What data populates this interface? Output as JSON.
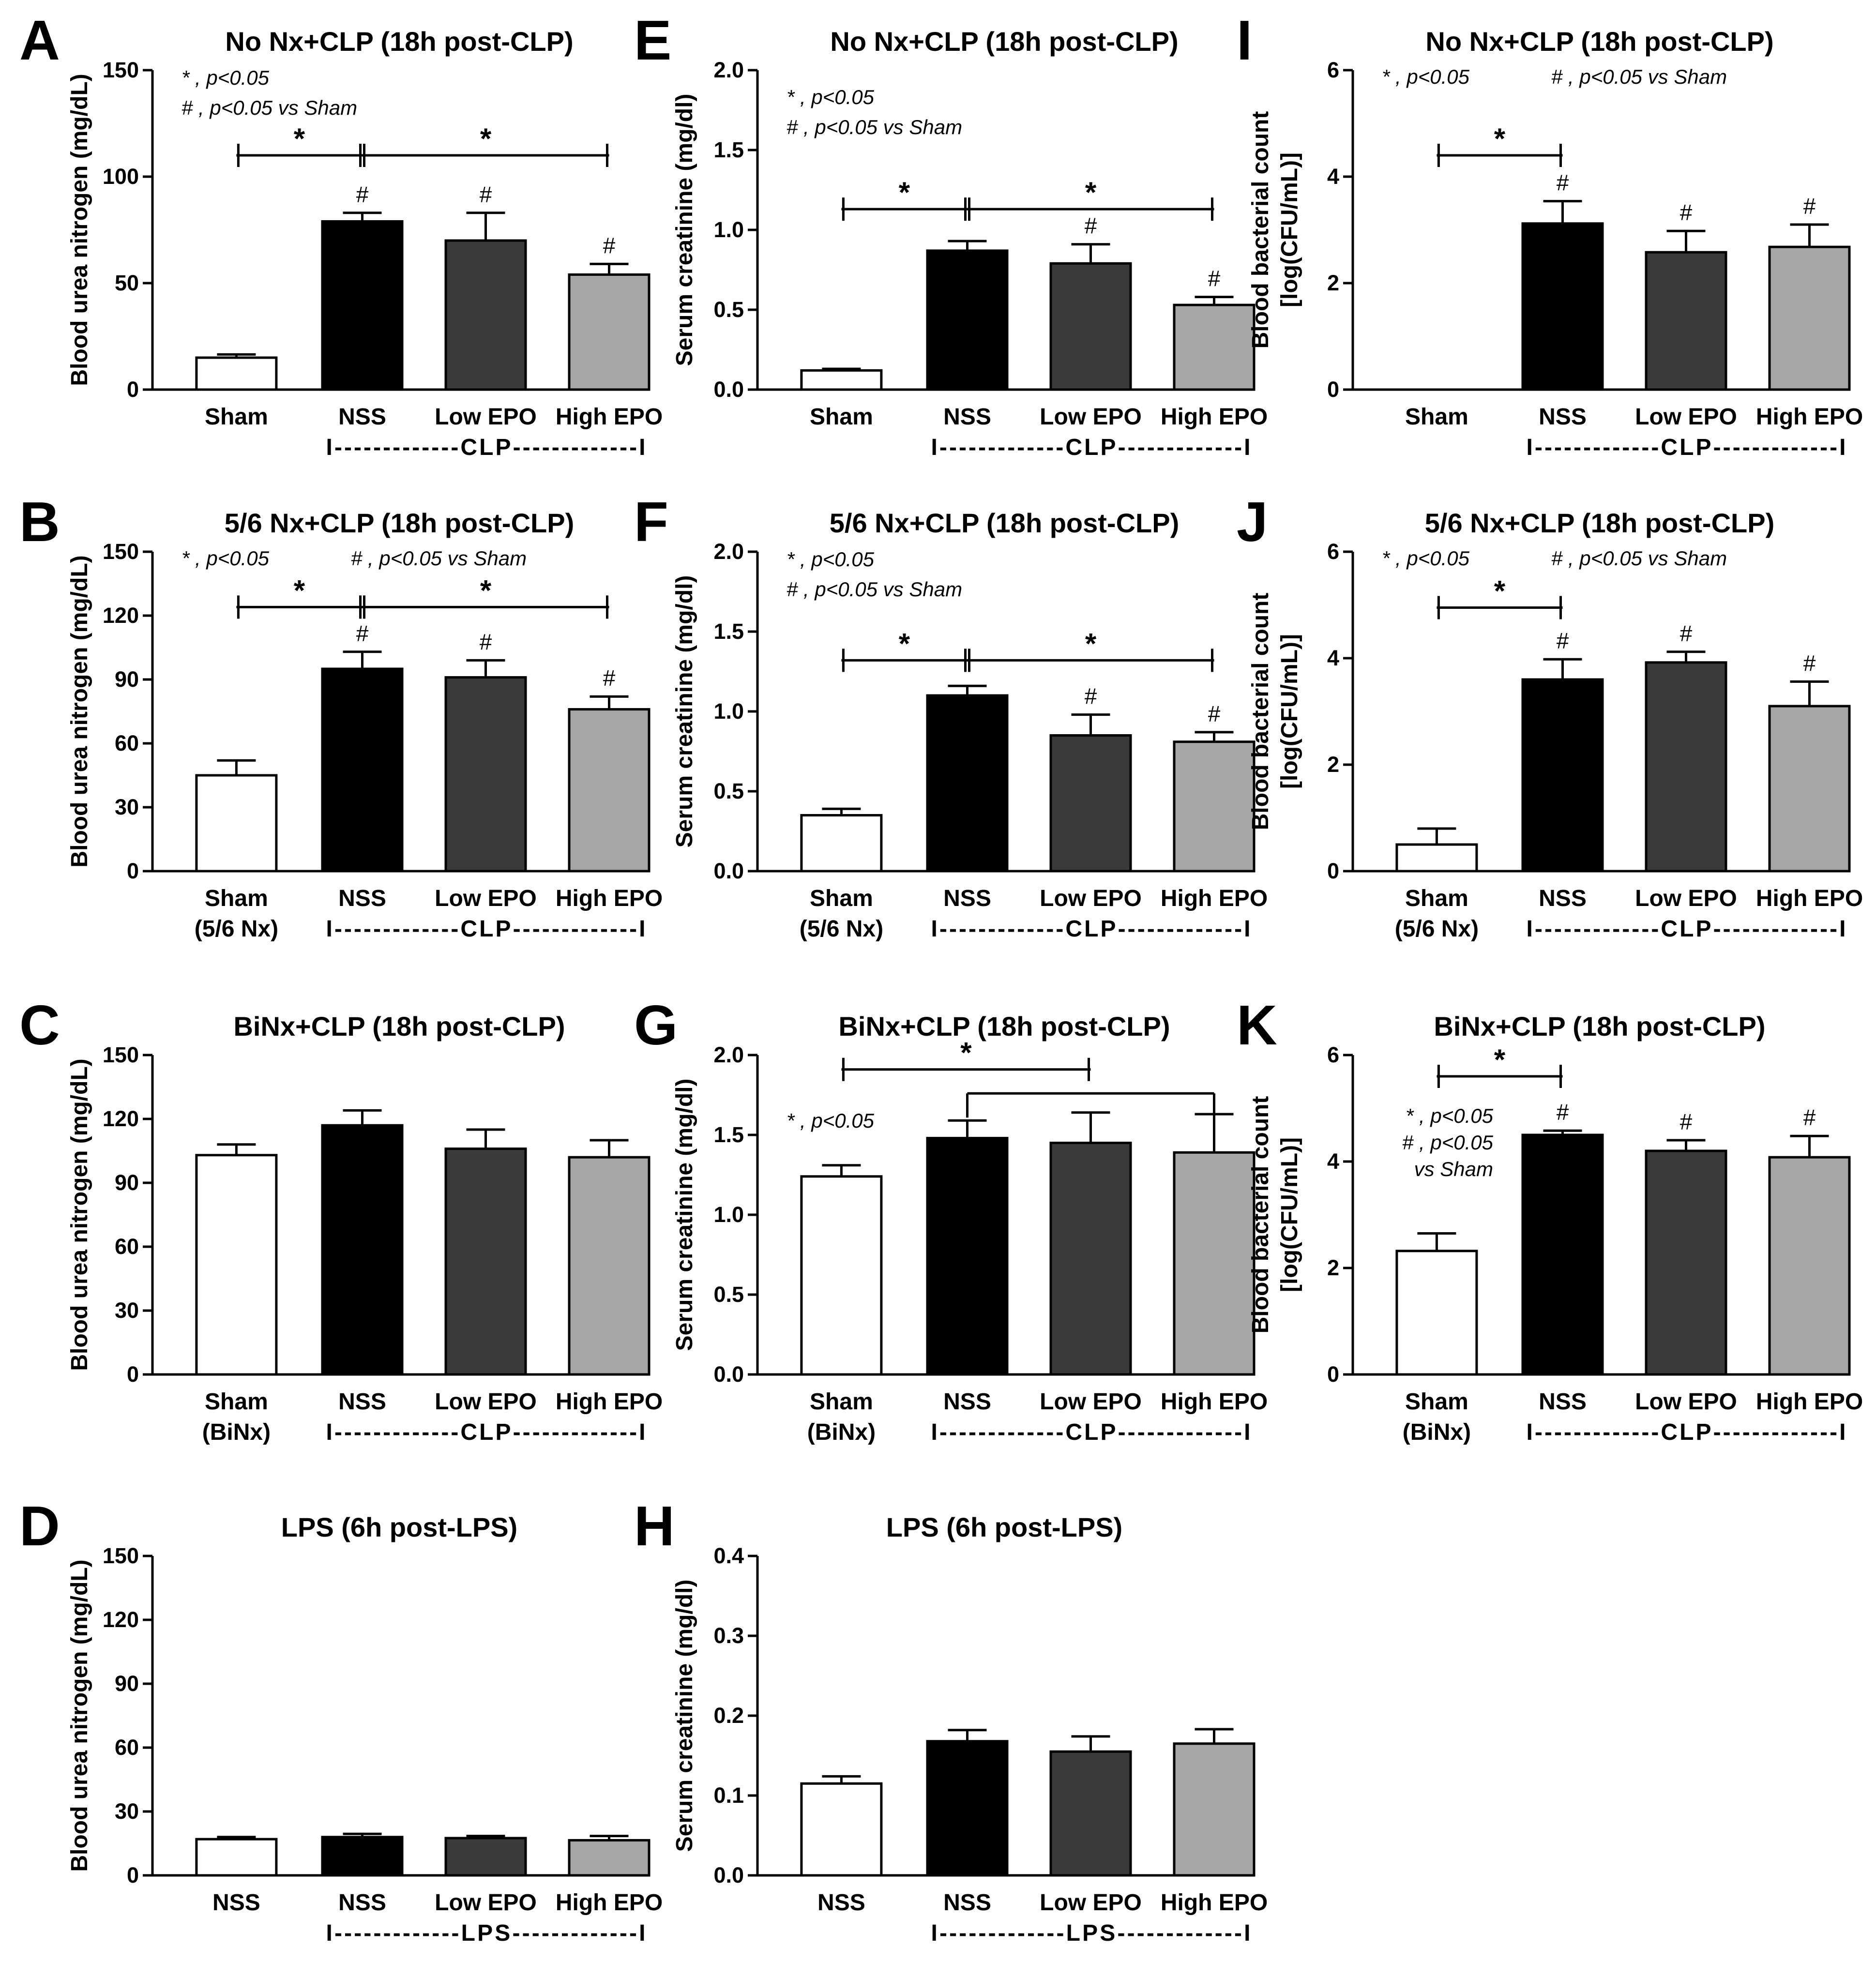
{
  "chart_data": [
    {
      "panel": "A",
      "type": "bar",
      "title": "No Nx+CLP (18h post-CLP)",
      "ylabel": "Blood urea nitrogen (mg/dL)",
      "ylim": [
        0,
        150
      ],
      "yticks": [
        "0",
        "50",
        "100",
        "150"
      ],
      "categories": [
        "Sham",
        "NSS",
        "Low EPO",
        "High EPO"
      ],
      "categories_line2": [
        "",
        "",
        "",
        ""
      ],
      "group_label": "I-------------CLP-------------I",
      "group_span": [
        1,
        3
      ],
      "values": [
        15,
        79,
        70,
        54
      ],
      "errors": [
        1.5,
        4,
        13,
        5
      ],
      "colors": [
        "#ffffff",
        "#000000",
        "#3a3a3a",
        "#a6a6a6"
      ],
      "hash": [
        false,
        true,
        true,
        true
      ],
      "hash_text": "#",
      "brackets": [
        {
          "from": 0,
          "to": 1,
          "y": 110,
          "label": "*"
        },
        {
          "from": 1,
          "to": 3,
          "y": 110,
          "label": "*"
        }
      ],
      "legend": [
        "* , p<0.05",
        "# , p<0.05 vs Sham"
      ],
      "legend_layout": "stack"
    },
    {
      "panel": "B",
      "type": "bar",
      "title": "5/6 Nx+CLP (18h post-CLP)",
      "ylabel": "Blood urea nitrogen (mg/dL)",
      "ylim": [
        0,
        150
      ],
      "yticks": [
        "0",
        "30",
        "60",
        "90",
        "120",
        "150"
      ],
      "categories": [
        "Sham",
        "NSS",
        "Low EPO",
        "High EPO"
      ],
      "categories_line2": [
        "(5/6 Nx)",
        "",
        "",
        ""
      ],
      "group_label": "I-------------CLP-------------I",
      "group_span": [
        1,
        3
      ],
      "values": [
        45,
        95,
        91,
        76
      ],
      "errors": [
        7,
        8,
        8,
        6
      ],
      "colors": [
        "#ffffff",
        "#000000",
        "#3a3a3a",
        "#a6a6a6"
      ],
      "hash": [
        false,
        true,
        true,
        true
      ],
      "hash_text": "#",
      "brackets": [
        {
          "from": 0,
          "to": 1,
          "y": 124,
          "label": "*"
        },
        {
          "from": 1,
          "to": 3,
          "y": 124,
          "label": "*"
        }
      ],
      "legend": [
        "* , p<0.05",
        "# , p<0.05 vs Sham"
      ],
      "legend_layout": "row"
    },
    {
      "panel": "C",
      "type": "bar",
      "title": "BiNx+CLP (18h post-CLP)",
      "ylabel": "Blood urea nitrogen (mg/dL)",
      "ylim": [
        0,
        150
      ],
      "yticks": [
        "0",
        "30",
        "60",
        "90",
        "120",
        "150"
      ],
      "categories": [
        "Sham",
        "NSS",
        "Low EPO",
        "High EPO"
      ],
      "categories_line2": [
        "(BiNx)",
        "",
        "",
        ""
      ],
      "group_label": "I-------------CLP-------------I",
      "group_span": [
        1,
        3
      ],
      "values": [
        103,
        117,
        106,
        102
      ],
      "errors": [
        5,
        7,
        9,
        8
      ],
      "colors": [
        "#ffffff",
        "#000000",
        "#3a3a3a",
        "#a6a6a6"
      ],
      "hash": [
        false,
        false,
        false,
        false
      ],
      "hash_text": "#",
      "brackets": [],
      "legend": [],
      "legend_layout": "stack"
    },
    {
      "panel": "D",
      "type": "bar",
      "title": "LPS (6h post-LPS)",
      "ylabel": "Blood urea nitrogen (mg/dL)",
      "ylim": [
        0,
        150
      ],
      "yticks": [
        "0",
        "30",
        "60",
        "90",
        "120",
        "150"
      ],
      "categories": [
        "NSS",
        "NSS",
        "Low EPO",
        "High EPO"
      ],
      "categories_line2": [
        "",
        "",
        "",
        ""
      ],
      "group_label": "I-------------LPS-------------I",
      "group_span": [
        1,
        3
      ],
      "values": [
        17,
        18,
        17.5,
        16.5
      ],
      "errors": [
        1,
        1.5,
        1,
        2
      ],
      "colors": [
        "#ffffff",
        "#000000",
        "#3a3a3a",
        "#a6a6a6"
      ],
      "hash": [
        false,
        false,
        false,
        false
      ],
      "hash_text": "#",
      "brackets": [],
      "legend": [],
      "legend_layout": "stack"
    },
    {
      "panel": "E",
      "type": "bar",
      "title": "No Nx+CLP (18h post-CLP)",
      "ylabel": "Serum creatinine (mg/dl)",
      "ylim": [
        0,
        2.0
      ],
      "yticks": [
        "0.0",
        "0.5",
        "1.0",
        "1.5",
        "2.0"
      ],
      "categories": [
        "Sham",
        "NSS",
        "Low EPO",
        "High EPO"
      ],
      "categories_line2": [
        "",
        "",
        "",
        ""
      ],
      "group_label": "I-------------CLP-------------I",
      "group_span": [
        1,
        3
      ],
      "values": [
        0.12,
        0.87,
        0.79,
        0.53
      ],
      "errors": [
        0.01,
        0.06,
        0.12,
        0.05
      ],
      "colors": [
        "#ffffff",
        "#000000",
        "#3a3a3a",
        "#a6a6a6"
      ],
      "hash": [
        false,
        false,
        true,
        true
      ],
      "hash_text": "#",
      "brackets": [
        {
          "from": 0,
          "to": 1,
          "y": 1.13,
          "label": "*"
        },
        {
          "from": 1,
          "to": 3,
          "y": 1.13,
          "label": "*"
        }
      ],
      "legend": [
        "* , p<0.05",
        "# , p<0.05 vs Sham"
      ],
      "legend_layout": "stack"
    },
    {
      "panel": "F",
      "type": "bar",
      "title": "5/6 Nx+CLP (18h post-CLP)",
      "ylabel": "Serum creatinine (mg/dl)",
      "ylim": [
        0,
        2.0
      ],
      "yticks": [
        "0.0",
        "0.5",
        "1.0",
        "1.5",
        "2.0"
      ],
      "categories": [
        "Sham",
        "NSS",
        "Low EPO",
        "High EPO"
      ],
      "categories_line2": [
        "(5/6 Nx)",
        "",
        "",
        ""
      ],
      "group_label": "I-------------CLP-------------I",
      "group_span": [
        1,
        3
      ],
      "values": [
        0.35,
        1.1,
        0.85,
        0.81
      ],
      "errors": [
        0.04,
        0.06,
        0.13,
        0.06
      ],
      "colors": [
        "#ffffff",
        "#000000",
        "#3a3a3a",
        "#a6a6a6"
      ],
      "hash": [
        false,
        false,
        true,
        true
      ],
      "hash_text": "#",
      "brackets": [
        {
          "from": 0,
          "to": 1,
          "y": 1.32,
          "label": "*"
        },
        {
          "from": 1,
          "to": 3,
          "y": 1.32,
          "label": "*"
        }
      ],
      "legend": [
        "* , p<0.05",
        "# , p<0.05 vs Sham"
      ],
      "legend_layout": "stack"
    },
    {
      "panel": "G",
      "type": "bar",
      "title": "BiNx+CLP (18h post-CLP)",
      "ylabel": "Serum creatinine (mg/dl)",
      "ylim": [
        0,
        2.0
      ],
      "yticks": [
        "0.0",
        "0.5",
        "1.0",
        "1.5",
        "2.0"
      ],
      "categories": [
        "Sham",
        "NSS",
        "Low EPO",
        "High EPO"
      ],
      "categories_line2": [
        "(BiNx)",
        "",
        "",
        ""
      ],
      "group_label": "I-------------CLP-------------I",
      "group_span": [
        1,
        3
      ],
      "values": [
        1.24,
        1.48,
        1.45,
        1.39
      ],
      "errors": [
        0.07,
        0.11,
        0.19,
        0.24
      ],
      "colors": [
        "#ffffff",
        "#000000",
        "#3a3a3a",
        "#a6a6a6"
      ],
      "hash": [
        false,
        false,
        false,
        false
      ],
      "hash_text": "#",
      "brackets": [
        {
          "from": 0,
          "to": 2,
          "y": 1.91,
          "label": "*",
          "style": "flat"
        },
        {
          "from": 1,
          "to": 3,
          "y": 1.76,
          "label": "",
          "style": "cap_down"
        }
      ],
      "legend": [
        "* , p<0.05"
      ],
      "legend_layout": "stack"
    },
    {
      "panel": "H",
      "type": "bar",
      "title": "LPS (6h post-LPS)",
      "ylabel": "Serum creatinine (mg/dl)",
      "ylim": [
        0,
        0.4
      ],
      "yticks": [
        "0.0",
        "0.1",
        "0.2",
        "0.3",
        "0.4"
      ],
      "categories": [
        "NSS",
        "NSS",
        "Low EPO",
        "High EPO"
      ],
      "categories_line2": [
        "",
        "",
        "",
        ""
      ],
      "group_label": "I-------------LPS-------------I",
      "group_span": [
        1,
        3
      ],
      "values": [
        0.115,
        0.168,
        0.155,
        0.165
      ],
      "errors": [
        0.009,
        0.014,
        0.019,
        0.018
      ],
      "colors": [
        "#ffffff",
        "#000000",
        "#3a3a3a",
        "#a6a6a6"
      ],
      "hash": [
        false,
        false,
        false,
        false
      ],
      "hash_text": "#",
      "brackets": [],
      "legend": [],
      "legend_layout": "stack"
    },
    {
      "panel": "I",
      "type": "bar",
      "title": "No Nx+CLP (18h post-CLP)",
      "ylabel": "Blood bacterial count",
      "ylabel2": "[log(CFU/mL)]",
      "ylim": [
        0,
        6
      ],
      "yticks": [
        "0",
        "2",
        "4",
        "6"
      ],
      "categories": [
        "Sham",
        "NSS",
        "Low EPO",
        "High EPO"
      ],
      "categories_line2": [
        "",
        "",
        "",
        ""
      ],
      "group_label": "I-------------CLP-------------I",
      "group_span": [
        1,
        3
      ],
      "values": [
        0,
        3.12,
        2.58,
        2.68
      ],
      "errors": [
        0,
        0.42,
        0.4,
        0.42
      ],
      "colors": [
        "#ffffff",
        "#000000",
        "#3a3a3a",
        "#a6a6a6"
      ],
      "hash": [
        false,
        true,
        true,
        true
      ],
      "hash_text": "#",
      "brackets": [
        {
          "from": 0,
          "to": 1,
          "y": 4.4,
          "label": "*"
        }
      ],
      "legend": [
        "* , p<0.05",
        "# , p<0.05 vs Sham"
      ],
      "legend_layout": "row"
    },
    {
      "panel": "J",
      "type": "bar",
      "title": "5/6 Nx+CLP (18h post-CLP)",
      "ylabel": "Blood bacterial count",
      "ylabel2": "[log(CFU/mL)]",
      "ylim": [
        0,
        6
      ],
      "yticks": [
        "0",
        "2",
        "4",
        "6"
      ],
      "categories": [
        "Sham",
        "NSS",
        "Low EPO",
        "High EPO"
      ],
      "categories_line2": [
        "(5/6 Nx)",
        "",
        "",
        ""
      ],
      "group_label": "I-------------CLP-------------I",
      "group_span": [
        1,
        3
      ],
      "values": [
        0.5,
        3.6,
        3.92,
        3.1
      ],
      "errors": [
        0.3,
        0.38,
        0.2,
        0.46
      ],
      "colors": [
        "#ffffff",
        "#000000",
        "#3a3a3a",
        "#a6a6a6"
      ],
      "hash": [
        false,
        true,
        true,
        true
      ],
      "hash_text": "#",
      "brackets": [
        {
          "from": 0,
          "to": 1,
          "y": 4.95,
          "label": "*"
        }
      ],
      "legend": [
        "* , p<0.05",
        "# , p<0.05 vs Sham"
      ],
      "legend_layout": "row"
    },
    {
      "panel": "K",
      "type": "bar",
      "title": "BiNx+CLP (18h post-CLP)",
      "ylabel": "Blood bacterial count",
      "ylabel2": "[log(CFU/mL)]",
      "ylim": [
        0,
        6
      ],
      "yticks": [
        "0",
        "2",
        "4",
        "6"
      ],
      "categories": [
        "Sham",
        "NSS",
        "Low EPO",
        "High EPO"
      ],
      "categories_line2": [
        "(BiNx)",
        "",
        "",
        ""
      ],
      "group_label": "I-------------CLP-------------I",
      "group_span": [
        1,
        3
      ],
      "values": [
        2.32,
        4.5,
        4.2,
        4.08
      ],
      "errors": [
        0.33,
        0.08,
        0.2,
        0.4
      ],
      "colors": [
        "#ffffff",
        "#000000",
        "#3a3a3a",
        "#a6a6a6"
      ],
      "hash": [
        false,
        true,
        true,
        true
      ],
      "hash_text": "#",
      "brackets": [
        {
          "from": 0,
          "to": 1,
          "y": 5.6,
          "label": "*"
        }
      ],
      "legend": [
        "* , p<0.05",
        "# , p<0.05",
        "vs Sham"
      ],
      "legend_layout": "stack_right"
    }
  ]
}
